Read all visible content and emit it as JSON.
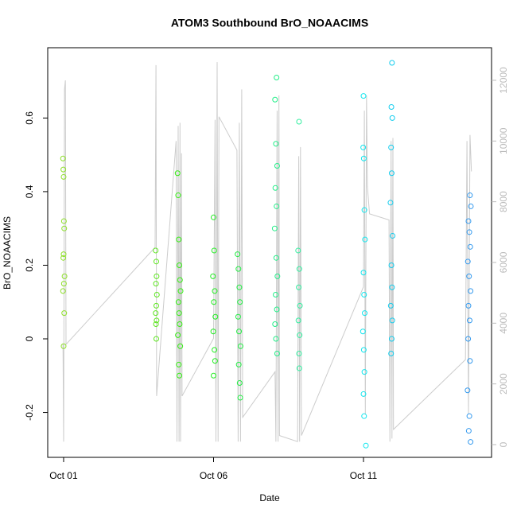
{
  "chart_data": {
    "type": "scatter",
    "title": "ATOM3 Southbound BrO_NOAACIMS",
    "x_label": "Date",
    "y_label": "BrO_NOAACIMS",
    "xlim": [
      0.47,
      15.27
    ],
    "xticks": [
      {
        "value": 1,
        "label": "Oct 01"
      },
      {
        "value": 6,
        "label": "Oct 06"
      },
      {
        "value": 11,
        "label": "Oct 11"
      }
    ],
    "ylim": [
      -0.322,
      0.791
    ],
    "yticks": [
      -0.2,
      0,
      0.2,
      0.4,
      0.6
    ],
    "y2lim": [
      -419,
      13073
    ],
    "y2ticks": [
      0,
      2000,
      4000,
      6000,
      8000,
      10000,
      12000
    ],
    "series": [
      {
        "type": "line",
        "axis": "y2",
        "color": "#cccccc",
        "x": [
          0.98,
          1.0,
          1.03,
          1.06,
          1.08,
          4.05,
          4.08,
          4.1,
          4.75,
          4.78,
          4.82,
          4.85,
          4.88,
          4.9,
          4.93,
          4.95,
          6.0,
          6.05,
          6.08,
          6.12,
          6.15,
          6.18,
          6.78,
          6.82,
          6.86,
          6.9,
          6.94,
          6.97,
          8.05,
          8.08,
          8.12,
          8.15,
          8.18,
          8.2,
          8.8,
          8.84,
          8.87,
          8.9,
          8.93,
          11.0,
          11.03,
          11.06,
          11.1,
          11.13,
          11.2,
          11.85,
          11.88,
          11.92,
          11.95,
          11.98,
          12.0,
          14.4,
          14.45,
          14.5,
          14.55,
          14.6
        ],
        "values": [
          3300,
          100,
          11700,
          12000,
          3300,
          6500,
          12500,
          1600,
          10000,
          100,
          10500,
          100,
          10600,
          100,
          9600,
          1600,
          3500,
          10700,
          100,
          12600,
          100,
          10800,
          9700,
          100,
          10600,
          100,
          11700,
          900,
          2400,
          100,
          11000,
          100,
          11500,
          300,
          100,
          9500,
          100,
          9800,
          300,
          5200,
          11000,
          1000,
          11500,
          8500,
          7600,
          7400,
          100,
          10000,
          200,
          10100,
          500,
          2800,
          10000,
          1000,
          10200,
          9000
        ]
      },
      {
        "color": "#8ee02a",
        "x": [
          0.98,
          0.99,
          1.0,
          1.01,
          1.02,
          1.0,
          0.99,
          1.03,
          1.01,
          0.98,
          1.02,
          1.0
        ],
        "values": [
          0.49,
          0.46,
          0.44,
          0.32,
          0.3,
          0.23,
          0.22,
          0.17,
          0.15,
          0.13,
          0.07,
          -0.02
        ]
      },
      {
        "color": "#5ee620",
        "x": [
          4.07,
          4.09,
          4.1,
          4.08,
          4.11,
          4.09,
          4.07,
          4.1,
          4.08,
          4.09
        ],
        "values": [
          0.24,
          0.21,
          0.17,
          0.15,
          0.12,
          0.09,
          0.07,
          0.05,
          0.04,
          0.0
        ]
      },
      {
        "color": "#33ee11",
        "x": [
          4.8,
          4.82,
          4.84,
          4.86,
          4.88,
          4.9,
          4.83,
          4.85,
          4.87,
          4.81,
          4.89,
          4.84,
          4.86
        ],
        "values": [
          0.45,
          0.39,
          0.27,
          0.2,
          0.16,
          0.13,
          0.1,
          0.07,
          0.04,
          0.01,
          -0.02,
          -0.07,
          -0.1
        ]
      },
      {
        "color": "#22ee22",
        "x": [
          6.0,
          6.02,
          5.98,
          6.04,
          6.01,
          6.06,
          5.99,
          6.03,
          6.05,
          6.0
        ],
        "values": [
          0.33,
          0.24,
          0.17,
          0.13,
          0.1,
          0.06,
          0.02,
          -0.03,
          -0.06,
          -0.1
        ]
      },
      {
        "color": "#22ee44",
        "x": [
          6.8,
          6.83,
          6.86,
          6.88,
          6.82,
          6.85,
          6.9,
          6.84,
          6.87,
          6.89
        ],
        "values": [
          0.23,
          0.19,
          0.14,
          0.1,
          0.06,
          0.02,
          -0.02,
          -0.07,
          -0.12,
          -0.16
        ]
      },
      {
        "color": "#22ee88",
        "x": [
          8.1,
          8.05,
          8.08,
          8.12,
          8.06,
          8.1,
          8.04,
          8.09,
          8.13,
          8.07,
          8.11,
          8.05,
          8.08,
          8.12
        ],
        "values": [
          0.71,
          0.65,
          0.53,
          0.47,
          0.41,
          0.36,
          0.3,
          0.22,
          0.17,
          0.12,
          0.08,
          0.04,
          0.0,
          -0.04
        ]
      },
      {
        "color": "#33eea0",
        "x": [
          8.85,
          8.82,
          8.86,
          8.84,
          8.88,
          8.83,
          8.87,
          8.85,
          8.86
        ],
        "values": [
          0.59,
          0.24,
          0.19,
          0.14,
          0.09,
          0.05,
          0.01,
          -0.04,
          -0.08
        ]
      },
      {
        "color": "#11e6ee",
        "x": [
          11.0,
          10.99,
          11.01,
          11.03,
          11.05,
          11.0,
          11.02,
          11.04,
          10.98,
          11.01,
          11.03,
          11.0,
          11.02,
          11.08
        ],
        "values": [
          0.66,
          0.52,
          0.49,
          0.35,
          0.27,
          0.18,
          0.12,
          0.07,
          0.02,
          -0.03,
          -0.09,
          -0.15,
          -0.21,
          -0.29
        ]
      },
      {
        "color": "#11ccee",
        "x": [
          11.95,
          11.93,
          11.96,
          11.92,
          11.94,
          11.9,
          11.97,
          11.93,
          11.95,
          11.91,
          11.96,
          11.94,
          11.92
        ],
        "values": [
          0.75,
          0.63,
          0.6,
          0.52,
          0.45,
          0.37,
          0.28,
          0.2,
          0.14,
          0.09,
          0.05,
          0.0,
          -0.04
        ]
      },
      {
        "color": "#3399ee",
        "x": [
          14.55,
          14.58,
          14.5,
          14.53,
          14.56,
          14.48,
          14.52,
          14.57,
          14.5,
          14.54,
          14.49,
          14.55,
          14.47,
          14.53,
          14.51,
          14.57
        ],
        "values": [
          0.39,
          0.36,
          0.32,
          0.29,
          0.25,
          0.21,
          0.17,
          0.13,
          0.09,
          0.05,
          0.0,
          -0.06,
          -0.14,
          -0.21,
          -0.25,
          -0.28
        ]
      }
    ]
  }
}
